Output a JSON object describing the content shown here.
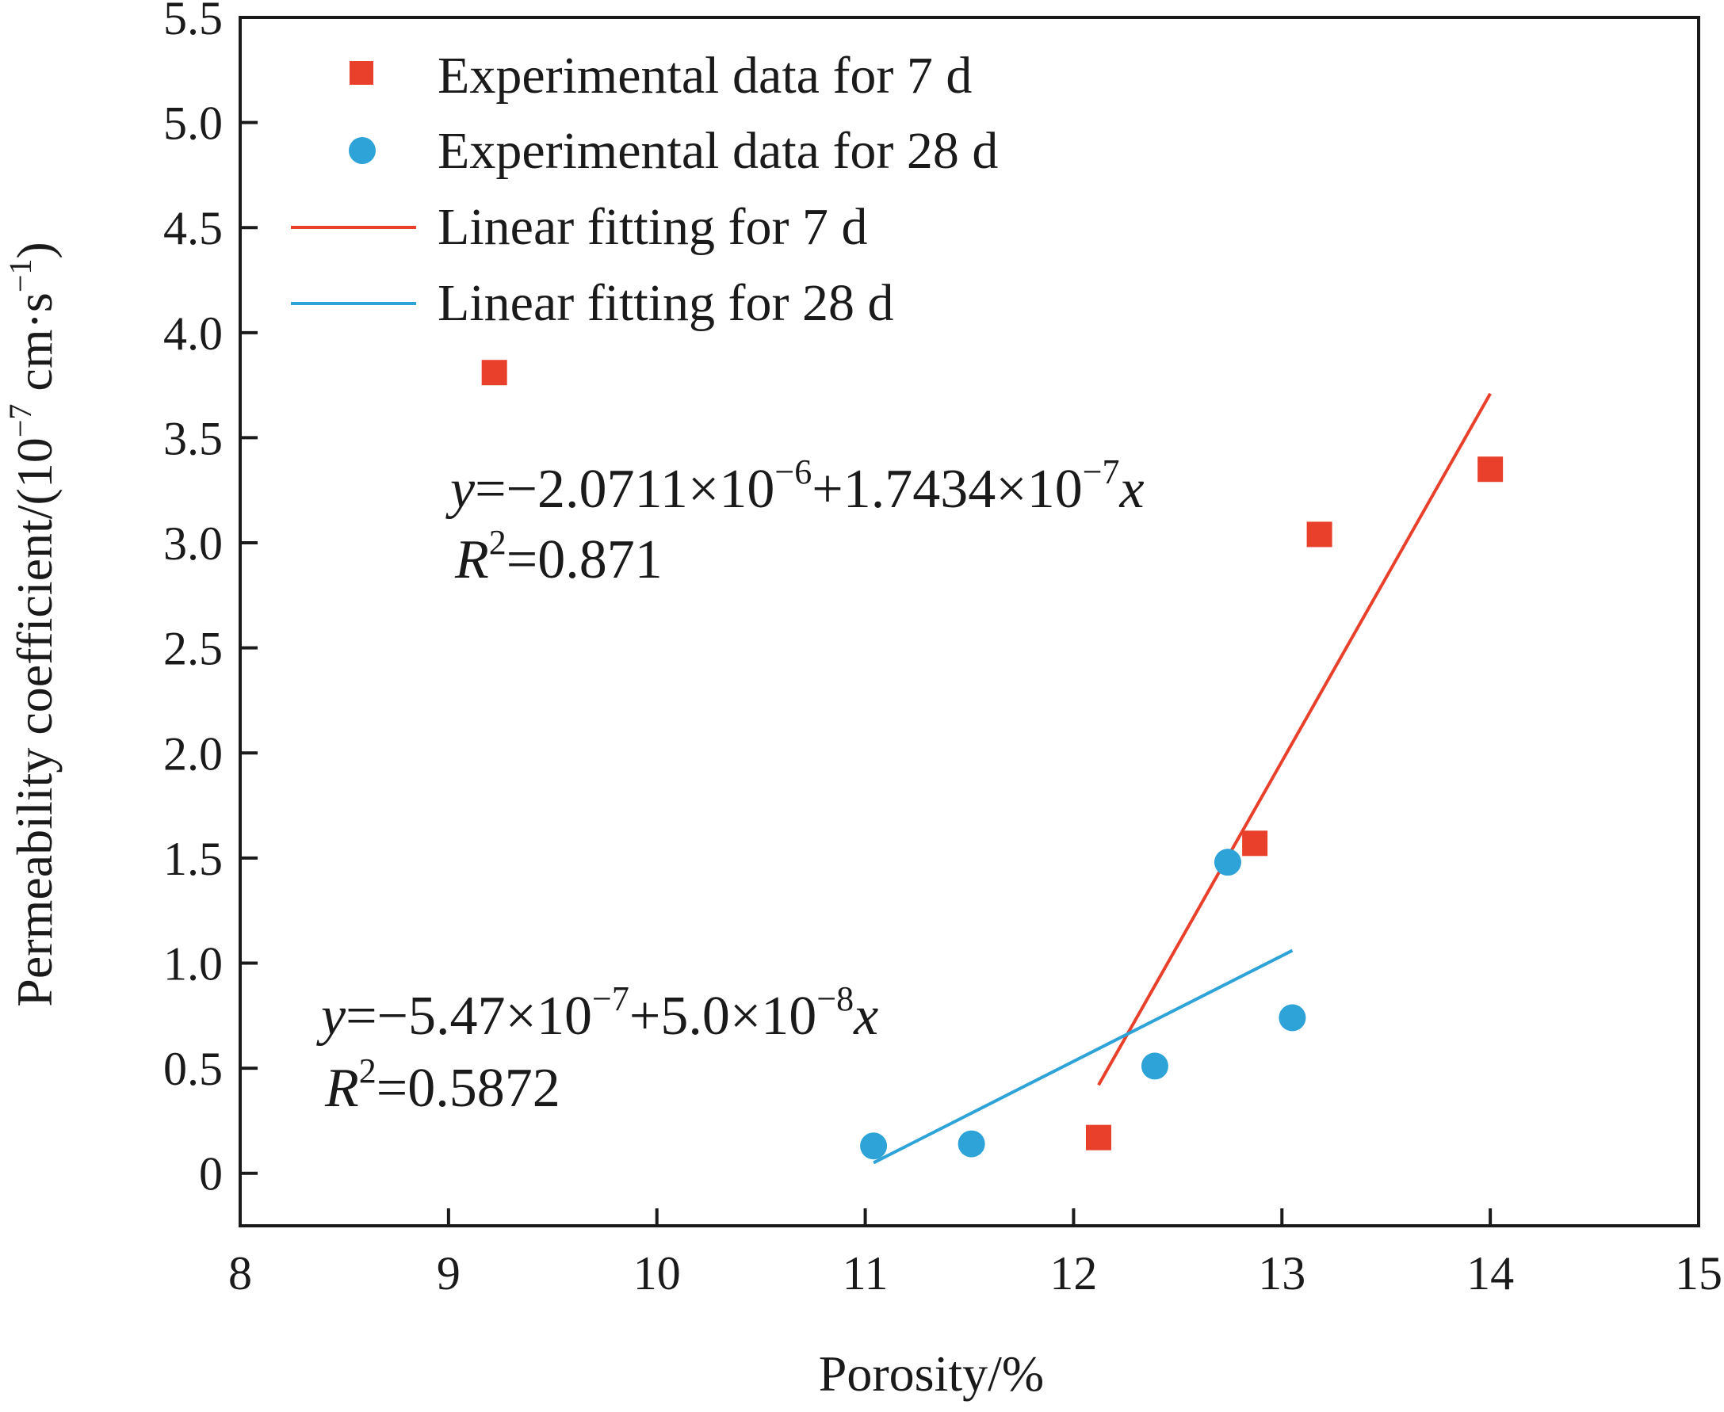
{
  "chart_data": {
    "type": "scatter",
    "title": "",
    "xlabel": "Porosity/%",
    "ylabel": {
      "base": "Permeability coefficient/(10",
      "exp1": "−7",
      "mid": " cm·s",
      "exp2": "−1",
      "end": ")"
    },
    "xlim": [
      8,
      15
    ],
    "ylim": [
      -0.25,
      5.5
    ],
    "x_ticks": [
      "8",
      "9",
      "10",
      "11",
      "12",
      "13",
      "14",
      "15"
    ],
    "y_ticks": [
      "0",
      "0.5",
      "1.0",
      "1.5",
      "2.0",
      "2.5",
      "3.0",
      "3.5",
      "4.0",
      "4.5",
      "5.0",
      "5.5"
    ],
    "grid": false,
    "legend_position": "top-left",
    "legend": [
      "Experimental data for 7 d",
      "Experimental data for 28 d",
      "Linear fitting for 7 d",
      "Linear fitting for 28 d"
    ],
    "series": [
      {
        "name": "Experimental data for 7 d",
        "kind": "scatter",
        "marker": "square",
        "color": "#e8402a",
        "x": [
          9.22,
          12.12,
          12.87,
          13.18,
          14.0
        ],
        "y": [
          3.81,
          0.17,
          1.57,
          3.04,
          3.35
        ]
      },
      {
        "name": "Experimental data for 28 d",
        "kind": "scatter",
        "marker": "circle",
        "color": "#2ea3d8",
        "x": [
          11.04,
          11.51,
          12.39,
          12.74,
          13.05
        ],
        "y": [
          0.13,
          0.14,
          0.51,
          1.48,
          0.74
        ]
      },
      {
        "name": "Linear fitting for 7 d",
        "kind": "line",
        "color": "#e8402a",
        "x": [
          12.12,
          14.0
        ],
        "y": [
          0.42,
          3.71
        ]
      },
      {
        "name": "Linear fitting for 28 d",
        "kind": "line",
        "color": "#2ea3d8",
        "x": [
          11.04,
          13.05
        ],
        "y": [
          0.05,
          1.06
        ]
      }
    ],
    "annotations": [
      {
        "var": "y",
        "expr": "=−2.0711×10",
        "exp1": "−6",
        "mid": "+1.7434×10",
        "exp2": "−7",
        "tail": "x",
        "r_label": "R",
        "r_exp": "2",
        "r_value": "=0.871"
      },
      {
        "var": "y",
        "expr": "=−5.47×10",
        "exp1": "−7",
        "mid": "+5.0×10",
        "exp2": "−8",
        "tail": "x",
        "r_label": "R",
        "r_exp": "2",
        "r_value": "=0.5872"
      }
    ]
  }
}
